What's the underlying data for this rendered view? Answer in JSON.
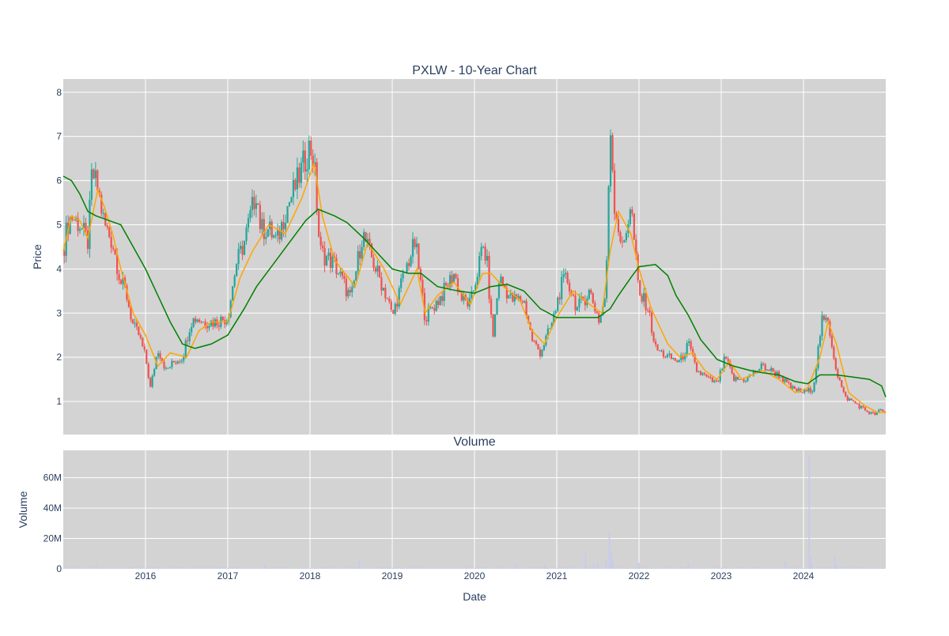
{
  "chart_data": [
    {
      "type": "candlestick",
      "title": "PXLW - 10-Year Chart",
      "ylabel": "Price",
      "ylim": [
        0.25,
        8.3
      ],
      "yticks": [
        1,
        2,
        3,
        4,
        5,
        6,
        7,
        8
      ],
      "xlim": [
        2015.0,
        2025.0
      ],
      "grid": true,
      "legend": "none",
      "colors": {
        "up": "#26a69a",
        "down": "#ef5350",
        "ma_short": "#ffa500",
        "ma_long": "#008000",
        "background": "#d3d3d3"
      },
      "price_path": {
        "x": [
          2015.0,
          2015.05,
          2015.1,
          2015.2,
          2015.3,
          2015.35,
          2015.42,
          2015.5,
          2015.6,
          2015.7,
          2015.76,
          2015.85,
          2015.92,
          2016.0,
          2016.06,
          2016.15,
          2016.25,
          2016.35,
          2016.45,
          2016.55,
          2016.62,
          2016.7,
          2016.85,
          2017.0,
          2017.1,
          2017.2,
          2017.35,
          2017.4,
          2017.5,
          2017.6,
          2017.7,
          2017.85,
          2018.0,
          2018.05,
          2018.12,
          2018.3,
          2018.5,
          2018.6,
          2018.64,
          2018.8,
          2018.95,
          2019.0,
          2019.1,
          2019.2,
          2019.28,
          2019.4,
          2019.6,
          2019.75,
          2019.85,
          2019.95,
          2020.1,
          2020.15,
          2020.22,
          2020.3,
          2020.45,
          2020.6,
          2020.7,
          2020.8,
          2020.95,
          2021.05,
          2021.12,
          2021.25,
          2021.4,
          2021.52,
          2021.6,
          2021.65,
          2021.7,
          2021.8,
          2021.9,
          2022.0,
          2022.1,
          2022.2,
          2022.35,
          2022.5,
          2022.6,
          2022.7,
          2022.85,
          2022.95,
          2023.05,
          2023.15,
          2023.3,
          2023.5,
          2023.7,
          2023.85,
          2024.0,
          2024.12,
          2024.22,
          2024.3,
          2024.4,
          2024.5,
          2024.6,
          2024.75,
          2024.85,
          2024.95,
          2025.0
        ],
        "y": [
          4.4,
          5.0,
          5.2,
          5.0,
          4.6,
          6.2,
          5.8,
          5.0,
          4.6,
          3.7,
          3.5,
          2.7,
          2.5,
          2.0,
          1.3,
          2.2,
          1.7,
          1.9,
          2.0,
          2.8,
          2.9,
          2.8,
          2.8,
          2.9,
          4.1,
          4.6,
          5.8,
          4.9,
          4.9,
          4.6,
          5.3,
          6.0,
          6.8,
          6.4,
          4.4,
          4.1,
          3.3,
          4.4,
          4.8,
          4.0,
          3.3,
          2.9,
          3.6,
          4.2,
          4.6,
          2.9,
          3.4,
          3.9,
          3.3,
          3.2,
          4.5,
          4.2,
          2.4,
          3.8,
          3.3,
          3.3,
          2.4,
          2.1,
          2.8,
          3.6,
          3.8,
          3.1,
          3.5,
          2.8,
          3.5,
          7.4,
          5.5,
          4.4,
          5.5,
          3.4,
          3.2,
          2.2,
          2.0,
          1.9,
          2.3,
          1.7,
          1.5,
          1.4,
          2.0,
          1.5,
          1.5,
          1.8,
          1.6,
          1.3,
          1.2,
          1.3,
          2.8,
          2.8,
          1.7,
          1.1,
          1.0,
          0.8,
          0.7,
          0.8,
          0.7
        ]
      },
      "candle_stats": {
        "span_years": 10,
        "wiggle": 0.12
      },
      "series": [
        {
          "id": "ma_short",
          "x": [
            2015.0,
            2015.1,
            2015.2,
            2015.3,
            2015.42,
            2015.5,
            2015.6,
            2015.7,
            2015.85,
            2016.0,
            2016.15,
            2016.3,
            2016.5,
            2016.65,
            2016.8,
            2017.0,
            2017.15,
            2017.3,
            2017.5,
            2017.7,
            2017.9,
            2018.05,
            2018.15,
            2018.3,
            2018.55,
            2018.7,
            2018.9,
            2019.1,
            2019.3,
            2019.4,
            2019.55,
            2019.75,
            2019.95,
            2020.1,
            2020.2,
            2020.35,
            2020.55,
            2020.7,
            2020.85,
            2021.0,
            2021.2,
            2021.4,
            2021.55,
            2021.65,
            2021.75,
            2021.9,
            2022.0,
            2022.15,
            2022.35,
            2022.5,
            2022.65,
            2022.8,
            2022.95,
            2023.1,
            2023.25,
            2023.5,
            2023.7,
            2023.9,
            2024.05,
            2024.2,
            2024.3,
            2024.4,
            2024.55,
            2024.75,
            2024.9,
            2025.0
          ],
          "y": [
            4.4,
            5.2,
            5.1,
            4.7,
            5.8,
            5.4,
            4.8,
            4.0,
            3.0,
            2.5,
            1.8,
            2.1,
            2.0,
            2.6,
            2.8,
            2.8,
            3.8,
            4.4,
            5.0,
            4.8,
            5.6,
            6.4,
            5.2,
            4.2,
            3.6,
            4.6,
            4.0,
            3.2,
            4.0,
            3.0,
            3.4,
            3.7,
            3.2,
            3.9,
            3.9,
            3.6,
            3.3,
            2.6,
            2.3,
            2.9,
            3.5,
            3.2,
            3.0,
            4.4,
            5.3,
            4.8,
            4.0,
            3.1,
            2.3,
            2.0,
            2.1,
            1.7,
            1.5,
            1.9,
            1.5,
            1.7,
            1.5,
            1.2,
            1.3,
            2.0,
            2.8,
            2.3,
            1.2,
            0.9,
            0.75,
            0.75
          ]
        },
        {
          "id": "ma_long",
          "x": [
            2015.0,
            2015.1,
            2015.2,
            2015.3,
            2015.4,
            2015.55,
            2015.7,
            2015.85,
            2016.0,
            2016.15,
            2016.3,
            2016.45,
            2016.6,
            2016.8,
            2017.0,
            2017.2,
            2017.35,
            2017.55,
            2017.75,
            2017.95,
            2018.1,
            2018.3,
            2018.45,
            2018.65,
            2018.85,
            2019.0,
            2019.2,
            2019.35,
            2019.55,
            2019.8,
            2020.0,
            2020.2,
            2020.4,
            2020.6,
            2020.8,
            2021.0,
            2021.3,
            2021.5,
            2021.65,
            2021.75,
            2021.9,
            2022.0,
            2022.2,
            2022.35,
            2022.45,
            2022.6,
            2022.75,
            2022.95,
            2023.15,
            2023.35,
            2023.5,
            2023.7,
            2023.9,
            2024.05,
            2024.2,
            2024.4,
            2024.6,
            2024.8,
            2024.95,
            2025.0
          ],
          "y": [
            6.1,
            6.0,
            5.7,
            5.3,
            5.2,
            5.1,
            5.0,
            4.5,
            4.0,
            3.4,
            2.8,
            2.3,
            2.2,
            2.3,
            2.5,
            3.1,
            3.6,
            4.1,
            4.6,
            5.1,
            5.35,
            5.2,
            5.05,
            4.7,
            4.3,
            4.0,
            3.9,
            3.9,
            3.6,
            3.5,
            3.45,
            3.6,
            3.65,
            3.5,
            3.1,
            2.9,
            2.9,
            2.9,
            3.1,
            3.4,
            3.8,
            4.05,
            4.1,
            3.85,
            3.4,
            2.95,
            2.4,
            1.95,
            1.8,
            1.7,
            1.65,
            1.6,
            1.45,
            1.4,
            1.6,
            1.6,
            1.55,
            1.5,
            1.35,
            1.1
          ]
        }
      ]
    },
    {
      "type": "bar",
      "title": "Volume",
      "ylabel": "Volume",
      "xlabel": "Date",
      "ylim": [
        0,
        78000000
      ],
      "yticks": [
        0,
        20000000,
        40000000,
        60000000
      ],
      "ytick_labels": [
        "0",
        "20M",
        "40M",
        "60M"
      ],
      "xlim": [
        2015.0,
        2025.0
      ],
      "xticks": [
        2016,
        2017,
        2018,
        2019,
        2020,
        2021,
        2022,
        2023,
        2024
      ],
      "xtick_labels": [
        "2016",
        "2017",
        "2018",
        "2019",
        "2020",
        "2021",
        "2022",
        "2023",
        "2024"
      ],
      "grid": true,
      "bar_color": "#c8cbec",
      "baseline_volume": 600000,
      "spikes": {
        "x": [
          2015.4,
          2016.9,
          2017.45,
          2018.6,
          2019.9,
          2020.3,
          2020.5,
          2020.85,
          2021.35,
          2021.45,
          2021.5,
          2021.6,
          2021.64,
          2021.66,
          2021.68,
          2022.0,
          2022.6,
          2023.78,
          2024.07,
          2024.09,
          2024.1,
          2024.38,
          2024.4
        ],
        "values": [
          2500000,
          1500000,
          3000000,
          5500000,
          1500000,
          2000000,
          3500000,
          2500000,
          11000000,
          3500000,
          5000000,
          7000000,
          24000000,
          12000000,
          5000000,
          4000000,
          4000000,
          4500000,
          75000000,
          8000000,
          3000000,
          8000000,
          3000000
        ]
      }
    }
  ]
}
